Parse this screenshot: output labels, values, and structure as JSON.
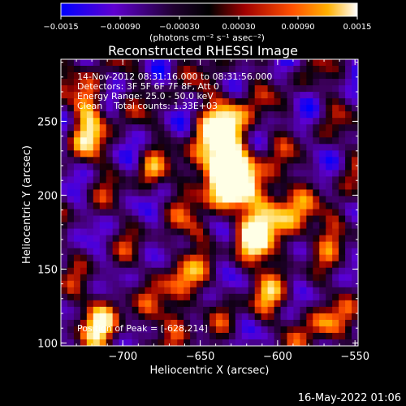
{
  "colorbar": {
    "ticks": [
      "−0.0015",
      "−0.00090",
      "−0.00030",
      "0.00030",
      "0.00090",
      "0.0015"
    ],
    "unit_label": "(photons cm⁻² s⁻¹ asec⁻²)",
    "range": [
      -0.0015,
      0.0015
    ],
    "colors": [
      "#0000ff",
      "#7a00c8",
      "#000000",
      "#a00000",
      "#ff5a00",
      "#ffc800",
      "#ffffff"
    ]
  },
  "chart_data": {
    "type": "heatmap",
    "title": "Reconstructed RHESSI Image",
    "xlabel": "Heliocentric X (arcsec)",
    "ylabel": "Heliocentric Y (arcsec)",
    "xlim": [
      -740,
      -548
    ],
    "ylim": [
      98,
      292
    ],
    "x_ticks": [
      -700,
      -650,
      -600,
      -550
    ],
    "x_tick_labels": [
      "−700",
      "−650",
      "−600",
      "−550"
    ],
    "y_ticks": [
      100,
      150,
      200,
      250
    ],
    "y_tick_labels": [
      "100",
      "150",
      "200",
      "250"
    ],
    "annotations": [
      "14-Nov-2012 08:31:16.000 to 08:31:56.000",
      "Detectors: 3F 5F 6F 7F 8F, Att 0",
      "Energy Range: 25.0 - 50.0 keV",
      "Clean    Total counts: 1.33E+03"
    ],
    "peak_label": "Position of Peak = [-628,214]",
    "peak": [
      -628,
      214
    ]
  },
  "timestamp": "16-May-2022 01:06"
}
